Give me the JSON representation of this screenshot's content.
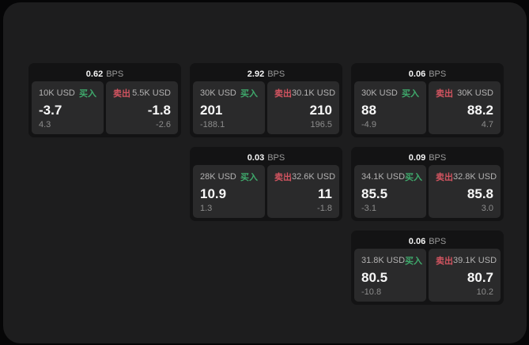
{
  "labels": {
    "buy": "买入",
    "sell": "卖出",
    "bps_unit": "BPS"
  },
  "colors": {
    "background": "#060607",
    "panel": "#1d1d1e",
    "card": "#131314",
    "subpanel": "#2a2a2b",
    "buy_green": "#3fa96c",
    "sell_red": "#d25460"
  },
  "cards": [
    {
      "bps": "0.62",
      "buy": {
        "amount": "10K USD",
        "value": "-3.7",
        "delta": "4.3"
      },
      "sell": {
        "amount": "5.5K USD",
        "value": "-1.8",
        "delta": "-2.6"
      }
    },
    {
      "bps": "2.92",
      "buy": {
        "amount": "30K USD",
        "value": "201",
        "delta": "-188.1"
      },
      "sell": {
        "amount": "30.1K USD",
        "value": "210",
        "delta": "196.5"
      }
    },
    {
      "bps": "0.06",
      "buy": {
        "amount": "30K USD",
        "value": "88",
        "delta": "-4.9"
      },
      "sell": {
        "amount": "30K USD",
        "value": "88.2",
        "delta": "4.7"
      }
    },
    {
      "bps": "0.03",
      "buy": {
        "amount": "28K USD",
        "value": "10.9",
        "delta": "1.3"
      },
      "sell": {
        "amount": "32.6K USD",
        "value": "11",
        "delta": "-1.8"
      }
    },
    {
      "bps": "0.09",
      "buy": {
        "amount": "34.1K USD",
        "value": "85.5",
        "delta": "-3.1"
      },
      "sell": {
        "amount": "32.8K USD",
        "value": "85.8",
        "delta": "3.0"
      }
    },
    {
      "bps": "0.06",
      "buy": {
        "amount": "31.8K USD",
        "value": "80.5",
        "delta": "-10.8"
      },
      "sell": {
        "amount": "39.1K USD",
        "value": "80.7",
        "delta": "10.2"
      }
    }
  ]
}
